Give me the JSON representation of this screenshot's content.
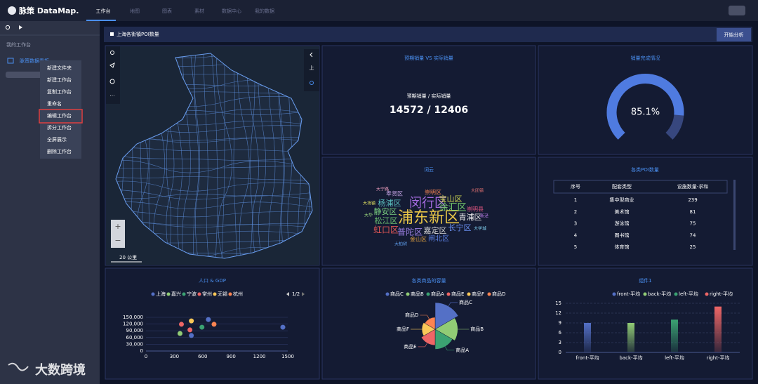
{
  "nav": {
    "logo": "脉策 DataMap.",
    "tabs": [
      "工作台",
      "地图",
      "图表",
      "素材",
      "数据中心",
      "我的数据"
    ]
  },
  "sidebar": {
    "section": "我的工作台",
    "item": "脉策数据看板",
    "menu": [
      "新建文件夹",
      "新建工作台",
      "复制工作台",
      "重命名",
      "编辑工作台",
      "拆分工作台",
      "全屏展示",
      "删除工作台"
    ]
  },
  "watermark": "大数跨境",
  "header": {
    "title": "上海各街镇POI数量",
    "button": "开始分析"
  },
  "map": {
    "zoom_in": "+",
    "zoom_out": "−",
    "side_button": "上",
    "scale": "20 公里"
  },
  "kpi": {
    "title": "预期销量 VS 实际销量",
    "label": "预期销量 / 实际销量",
    "value": "14572 / 12406"
  },
  "wordcloud": {
    "title": "词云",
    "words": [
      {
        "text": "浦东新区",
        "weight": 22,
        "color": "#e8c547"
      },
      {
        "text": "闵行区",
        "weight": 18,
        "color": "#a66be0"
      },
      {
        "text": "徐汇区",
        "weight": 13,
        "color": "#73c86b"
      },
      {
        "text": "宝山区",
        "weight": 11,
        "color": "#c8d050"
      },
      {
        "text": "杨浦区",
        "weight": 11,
        "color": "#5cc0c0"
      },
      {
        "text": "静安区",
        "weight": 11,
        "color": "#7ad080"
      },
      {
        "text": "松江区",
        "weight": 11,
        "color": "#6cc070"
      },
      {
        "text": "虹口区",
        "weight": 12,
        "color": "#e05555"
      },
      {
        "text": "普陀区",
        "weight": 12,
        "color": "#9b7fe0"
      },
      {
        "text": "嘉定区",
        "weight": 11,
        "color": "#d8d8d8"
      },
      {
        "text": "长宁区",
        "weight": 11,
        "color": "#6a8ff0"
      },
      {
        "text": "青浦区",
        "weight": 11,
        "color": "#f0f0f0"
      },
      {
        "text": "闸北区",
        "weight": 10,
        "color": "#5a7fe0"
      },
      {
        "text": "金山区",
        "weight": 8,
        "color": "#e0a040"
      },
      {
        "text": "崇明县",
        "weight": 8,
        "color": "#e05580"
      },
      {
        "text": "奉贤区",
        "weight": 8,
        "color": "#c0a0e0"
      },
      {
        "text": "崇明区",
        "weight": 8,
        "color": "#f08050"
      },
      {
        "text": "大团镇",
        "weight": 6,
        "color": "#e07070"
      },
      {
        "text": "大场镇",
        "weight": 6,
        "color": "#e0e060"
      },
      {
        "text": "大学城",
        "weight": 6,
        "color": "#80d0f0"
      },
      {
        "text": "大华",
        "weight": 6,
        "color": "#a0e080"
      },
      {
        "text": "大柏树",
        "weight": 6,
        "color": "#60a0f0"
      },
      {
        "text": "大宁路",
        "weight": 6,
        "color": "#f0a0c0"
      },
      {
        "text": "新泾",
        "weight": 6,
        "color": "#c080f0"
      }
    ]
  },
  "table": {
    "title": "各类POI数量",
    "columns": [
      "序号",
      "配套类型",
      "设施数量-求和"
    ],
    "rows": [
      [
        1,
        "集中型商业",
        239
      ],
      [
        2,
        "美术馆",
        81
      ],
      [
        3,
        "游泳馆",
        75
      ],
      [
        4,
        "图书馆",
        74
      ],
      [
        5,
        "体育馆",
        25
      ]
    ]
  },
  "chart_data": [
    {
      "type": "gauge",
      "title": "销量完成情况",
      "value": 85.1,
      "value_label": "85.1%",
      "ylim": [
        0,
        100
      ],
      "color": "#4f7be0"
    },
    {
      "type": "scatter",
      "title": "人口 & GDP",
      "legend_page": "1/2",
      "xlim": [
        0,
        1500
      ],
      "xticks": [
        0,
        300,
        600,
        900,
        1200,
        1500
      ],
      "ylim": [
        0,
        150000
      ],
      "yticks": [
        0,
        {
          "value": 30000,
          "label": "30,000"
        },
        {
          "value": 60000,
          "label": "60,000"
        },
        {
          "value": 90000,
          "label": "90,000"
        },
        {
          "value": 120000,
          "label": "120,000"
        },
        {
          "value": 150000,
          "label": "150,000"
        }
      ],
      "grid": true,
      "series": [
        {
          "name": "上海",
          "color": "#5470c6",
          "x": [
            1448,
            660,
            480
          ],
          "y": [
            106000,
            140000,
            69000
          ]
        },
        {
          "name": "嘉兴",
          "color": "#91cc75",
          "x": [
            360
          ],
          "y": [
            78000
          ]
        },
        {
          "name": "宁波",
          "color": "#3ba272",
          "x": [
            592
          ],
          "y": [
            106000
          ]
        },
        {
          "name": "常州",
          "color": "#ee6666",
          "x": [
            375,
            465
          ],
          "y": [
            119000,
            94000
          ]
        },
        {
          "name": "无锡",
          "color": "#fac858",
          "x": [
            480
          ],
          "y": [
            134000
          ]
        },
        {
          "name": "杭州",
          "color": "#fc8452",
          "x": [
            720
          ],
          "y": [
            119000
          ]
        }
      ]
    },
    {
      "type": "pie",
      "rose": true,
      "title": "各类商品的容量",
      "categories": [
        "商品C",
        "商品B",
        "商品A",
        "商品E",
        "商品F",
        "商品D"
      ],
      "values": [
        40,
        34,
        30,
        24,
        20,
        18
      ],
      "colors": [
        "#5470c6",
        "#91cc75",
        "#3ba272",
        "#ee6666",
        "#fac858",
        "#fc8452"
      ]
    },
    {
      "type": "bar",
      "title": "组件1",
      "categories": [
        "front-平均",
        "back-平均",
        "left-平均",
        "right-平均"
      ],
      "values": [
        9,
        9,
        10,
        14
      ],
      "colors": [
        "#5470c6",
        "#91cc75",
        "#3ba272",
        "#ee6666"
      ],
      "ylim": [
        0,
        15
      ],
      "yticks": [
        0,
        3,
        6,
        9,
        12,
        15
      ],
      "grid": true
    }
  ]
}
